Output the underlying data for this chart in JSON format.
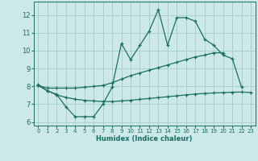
{
  "xlabel": "Humidex (Indice chaleur)",
  "bg_color": "#cce8e8",
  "grid_color": "#aacfcf",
  "line_color": "#1a6e62",
  "xlim": [
    -0.5,
    23.5
  ],
  "ylim": [
    5.8,
    12.75
  ],
  "xticks": [
    0,
    1,
    2,
    3,
    4,
    5,
    6,
    7,
    8,
    9,
    10,
    11,
    12,
    13,
    14,
    15,
    16,
    17,
    18,
    19,
    20,
    21,
    22,
    23
  ],
  "yticks": [
    6,
    7,
    8,
    9,
    10,
    11,
    12
  ],
  "line1_x": [
    0,
    1,
    2,
    3,
    4,
    5,
    6,
    7,
    8,
    9,
    10,
    11,
    12,
    13,
    14,
    15,
    16,
    17,
    18,
    19,
    20,
    21,
    22
  ],
  "line1_y": [
    8.1,
    7.75,
    7.55,
    6.85,
    6.3,
    6.3,
    6.3,
    7.0,
    7.95,
    10.4,
    9.5,
    10.3,
    11.1,
    12.3,
    10.3,
    11.85,
    11.85,
    11.65,
    10.65,
    10.3,
    9.75,
    9.55,
    7.95
  ],
  "line2_x": [
    0,
    1,
    2,
    3,
    4,
    5,
    6,
    7,
    8,
    9,
    10,
    11,
    12,
    13,
    14,
    15,
    16,
    17,
    18,
    19,
    20
  ],
  "line2_y": [
    8.05,
    7.9,
    7.9,
    7.9,
    7.9,
    7.95,
    8.0,
    8.05,
    8.2,
    8.4,
    8.6,
    8.75,
    8.9,
    9.05,
    9.2,
    9.35,
    9.5,
    9.65,
    9.75,
    9.88,
    9.88
  ],
  "line3_x": [
    0,
    1,
    2,
    3,
    4,
    5,
    6,
    7,
    8,
    9,
    10,
    11,
    12,
    13,
    14,
    15,
    16,
    17,
    18,
    19,
    20,
    21,
    22,
    23
  ],
  "line3_y": [
    8.05,
    7.75,
    7.52,
    7.38,
    7.28,
    7.22,
    7.18,
    7.15,
    7.15,
    7.18,
    7.22,
    7.27,
    7.32,
    7.37,
    7.42,
    7.47,
    7.52,
    7.57,
    7.6,
    7.63,
    7.65,
    7.67,
    7.68,
    7.65
  ]
}
